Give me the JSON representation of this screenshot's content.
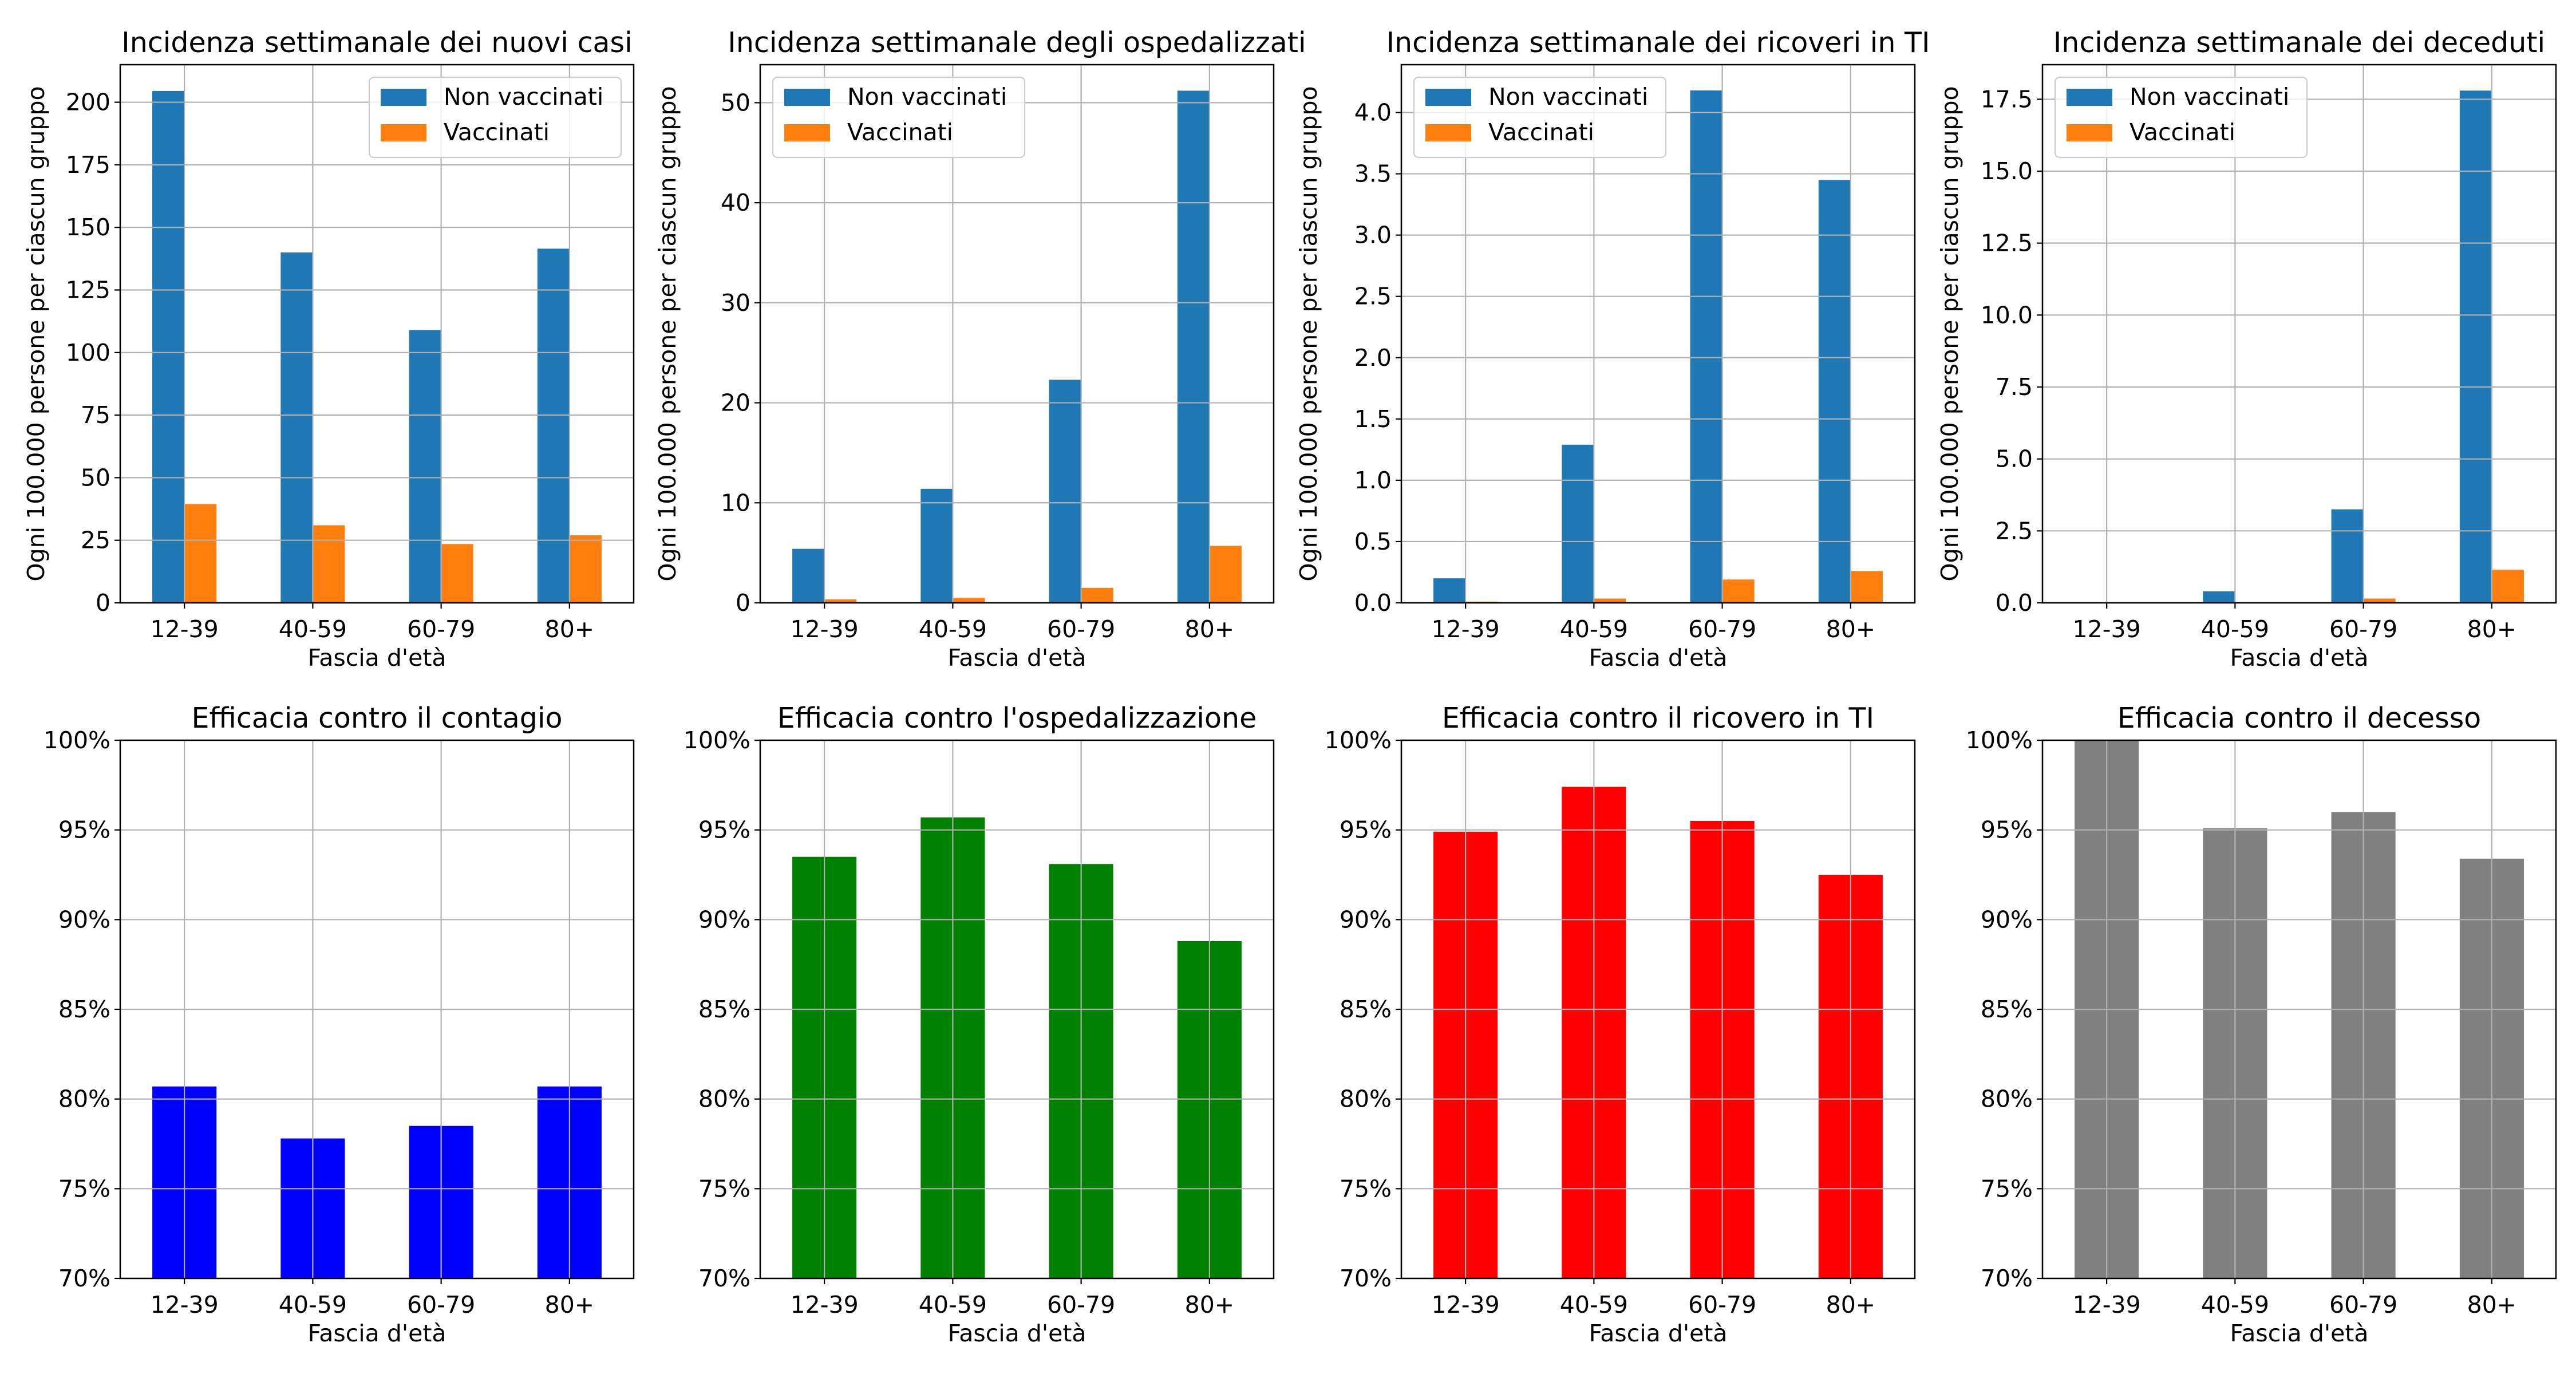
{
  "chart_data": [
    {
      "type": "bar",
      "title": "Incidenza settimanale dei nuovi casi",
      "xlabel": "Fascia d'età",
      "ylabel": "Ogni 100.000 persone per ciascun gruppo",
      "categories": [
        "12-39",
        "40-59",
        "60-79",
        "80+"
      ],
      "ylim": [
        0,
        215
      ],
      "yticks": [
        0,
        25,
        50,
        75,
        100,
        125,
        150,
        175,
        200
      ],
      "yticklabels": [
        "0",
        "25",
        "50",
        "75",
        "100",
        "125",
        "150",
        "175",
        "200"
      ],
      "grid": true,
      "legend": "top-right",
      "series": [
        {
          "name": "Non vaccinati",
          "color": "#1f77b4",
          "values": [
            204.5,
            140,
            109,
            141.5
          ]
        },
        {
          "name": "Vaccinati",
          "color": "#ff7f0e",
          "values": [
            39.5,
            31,
            23.5,
            27
          ]
        }
      ]
    },
    {
      "type": "bar",
      "title": "Incidenza settimanale degli ospedalizzati",
      "xlabel": "Fascia d'età",
      "ylabel": "Ogni 100.000 persone per ciascun gruppo",
      "categories": [
        "12-39",
        "40-59",
        "60-79",
        "80+"
      ],
      "ylim": [
        0,
        53.8
      ],
      "yticks": [
        0,
        10,
        20,
        30,
        40,
        50
      ],
      "yticklabels": [
        "0",
        "10",
        "20",
        "30",
        "40",
        "50"
      ],
      "grid": true,
      "legend": "top-left",
      "series": [
        {
          "name": "Non vaccinati",
          "color": "#1f77b4",
          "values": [
            5.4,
            11.4,
            22.3,
            51.2
          ]
        },
        {
          "name": "Vaccinati",
          "color": "#ff7f0e",
          "values": [
            0.35,
            0.5,
            1.5,
            5.7
          ]
        }
      ]
    },
    {
      "type": "bar",
      "title": "Incidenza settimanale dei ricoveri in TI",
      "xlabel": "Fascia d'età",
      "ylabel": "Ogni 100.000 persone per ciascun gruppo",
      "categories": [
        "12-39",
        "40-59",
        "60-79",
        "80+"
      ],
      "ylim": [
        0,
        4.39
      ],
      "yticks": [
        0,
        0.5,
        1,
        1.5,
        2,
        2.5,
        3,
        3.5,
        4
      ],
      "yticklabels": [
        "0.0",
        "0.5",
        "1.0",
        "1.5",
        "2.0",
        "2.5",
        "3.0",
        "3.5",
        "4.0"
      ],
      "grid": true,
      "legend": "top-left",
      "series": [
        {
          "name": "Non vaccinati",
          "color": "#1f77b4",
          "values": [
            0.2,
            1.29,
            4.18,
            3.45
          ]
        },
        {
          "name": "Vaccinati",
          "color": "#ff7f0e",
          "values": [
            0.01,
            0.035,
            0.19,
            0.26
          ]
        }
      ]
    },
    {
      "type": "bar",
      "title": "Incidenza settimanale dei deceduti",
      "xlabel": "Fascia d'età",
      "ylabel": "Ogni 100.000 persone per ciascun gruppo",
      "categories": [
        "12-39",
        "40-59",
        "60-79",
        "80+"
      ],
      "ylim": [
        0,
        18.7
      ],
      "yticks": [
        0,
        2.5,
        5,
        7.5,
        10,
        12.5,
        15,
        17.5
      ],
      "yticklabels": [
        "0.0",
        "2.5",
        "5.0",
        "7.5",
        "10.0",
        "12.5",
        "15.0",
        "17.5"
      ],
      "grid": true,
      "legend": "top-left",
      "series": [
        {
          "name": "Non vaccinati",
          "color": "#1f77b4",
          "values": [
            0.02,
            0.4,
            3.25,
            17.8
          ]
        },
        {
          "name": "Vaccinati",
          "color": "#ff7f0e",
          "values": [
            0,
            0.01,
            0.15,
            1.15
          ]
        }
      ]
    },
    {
      "type": "bar",
      "title": "Efficacia contro il contagio",
      "xlabel": "Fascia d'età",
      "ylabel": "",
      "categories": [
        "12-39",
        "40-59",
        "60-79",
        "80+"
      ],
      "ylim": [
        70,
        100
      ],
      "yticks": [
        70,
        75,
        80,
        85,
        90,
        95,
        100
      ],
      "yticklabels": [
        "70%",
        "75%",
        "80%",
        "85%",
        "90%",
        "95%",
        "100%"
      ],
      "grid": true,
      "legend": "none",
      "series": [
        {
          "color": "#0000ff",
          "values": [
            80.7,
            77.8,
            78.5,
            80.7
          ]
        }
      ]
    },
    {
      "type": "bar",
      "title": "Efficacia contro l'ospedalizzazione",
      "xlabel": "Fascia d'età",
      "ylabel": "",
      "categories": [
        "12-39",
        "40-59",
        "60-79",
        "80+"
      ],
      "ylim": [
        70,
        100
      ],
      "yticks": [
        70,
        75,
        80,
        85,
        90,
        95,
        100
      ],
      "yticklabels": [
        "70%",
        "75%",
        "80%",
        "85%",
        "90%",
        "95%",
        "100%"
      ],
      "grid": true,
      "legend": "none",
      "series": [
        {
          "color": "#008000",
          "values": [
            93.5,
            95.7,
            93.1,
            88.8
          ]
        }
      ]
    },
    {
      "type": "bar",
      "title": "Efficacia contro il ricovero in TI",
      "xlabel": "Fascia d'età",
      "ylabel": "",
      "categories": [
        "12-39",
        "40-59",
        "60-79",
        "80+"
      ],
      "ylim": [
        70,
        100
      ],
      "yticks": [
        70,
        75,
        80,
        85,
        90,
        95,
        100
      ],
      "yticklabels": [
        "70%",
        "75%",
        "80%",
        "85%",
        "90%",
        "95%",
        "100%"
      ],
      "grid": true,
      "legend": "none",
      "series": [
        {
          "color": "#ff0000",
          "values": [
            94.9,
            97.4,
            95.5,
            92.5
          ]
        }
      ]
    },
    {
      "type": "bar",
      "title": "Efficacia contro il decesso",
      "xlabel": "Fascia d'età",
      "ylabel": "",
      "categories": [
        "12-39",
        "40-59",
        "60-79",
        "80+"
      ],
      "ylim": [
        70,
        100
      ],
      "yticks": [
        70,
        75,
        80,
        85,
        90,
        95,
        100
      ],
      "yticklabels": [
        "70%",
        "75%",
        "80%",
        "85%",
        "90%",
        "95%",
        "100%"
      ],
      "grid": true,
      "legend": "none",
      "series": [
        {
          "color": "#808080",
          "values": [
            100,
            95.1,
            96,
            93.4
          ]
        }
      ]
    }
  ]
}
